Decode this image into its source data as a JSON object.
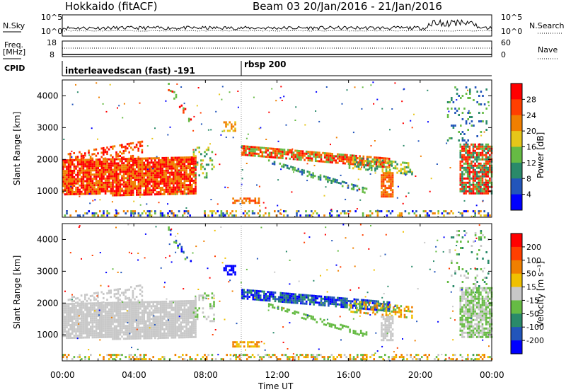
{
  "header": {
    "station": "Hokkaido (fitACF)",
    "beam_date": "Beam 03  20/Jan/2016 - 21/Jan/2016"
  },
  "aux_panels": {
    "nsky_label": "N.Sky",
    "nsky_ticks": [
      "10^5",
      "10^0"
    ],
    "nsearch_label": "N.Search",
    "nsearch_ticks": [
      "10^5",
      "10^0"
    ],
    "freq_label_1": "Freq.",
    "freq_label_2": "[MHz]",
    "freq_ticks": [
      "18",
      "8"
    ],
    "nave_label": "Nave",
    "nave_ticks": [
      "60",
      "0"
    ],
    "cpid_label": "CPID",
    "cpid_1": "interleavedscan (fast) -191",
    "cpid_2": "rbsp 200"
  },
  "colors": {
    "power": [
      "#0000ff",
      "#2255bb",
      "#2a8a6a",
      "#66bb44",
      "#e6c619",
      "#f07f00",
      "#ff3f00",
      "#ff0000"
    ],
    "velocity": [
      "#0000ff",
      "#2255bb",
      "#2a8a6a",
      "#66bb44",
      "#c8c8c8",
      "#f0c000",
      "#f07f00",
      "#ff3f00",
      "#ff0000"
    ]
  },
  "chart_data": [
    {
      "type": "heatmap",
      "name": "power",
      "ylabel": "Slant Range [km]",
      "yticks": [
        "4000",
        "3000",
        "2000",
        "1000"
      ],
      "ylim": [
        180,
        4500
      ],
      "colorbar_label": "Power [dB]",
      "colorbar_ticks": [
        "28",
        "24",
        "20",
        "16",
        "12",
        "8",
        "4"
      ],
      "colorbar_range": [
        0,
        30
      ]
    },
    {
      "type": "heatmap",
      "name": "velocity",
      "ylabel": "Slant Range [km]",
      "yticks": [
        "4000",
        "3000",
        "2000",
        "1000"
      ],
      "ylim": [
        180,
        4500
      ],
      "colorbar_label": "Velocity [m s⁻¹]",
      "colorbar_ticks": [
        "200",
        "100",
        "50",
        "15",
        "-15",
        "-50",
        "-100",
        "-200"
      ],
      "colorbar_range": [
        -250,
        250
      ]
    }
  ],
  "x_axis": {
    "label": "Time UT",
    "ticks": [
      "00:00",
      "04:00",
      "08:00",
      "12:00",
      "16:00",
      "20:00",
      "00:00"
    ],
    "range_hours": [
      0,
      24
    ]
  }
}
